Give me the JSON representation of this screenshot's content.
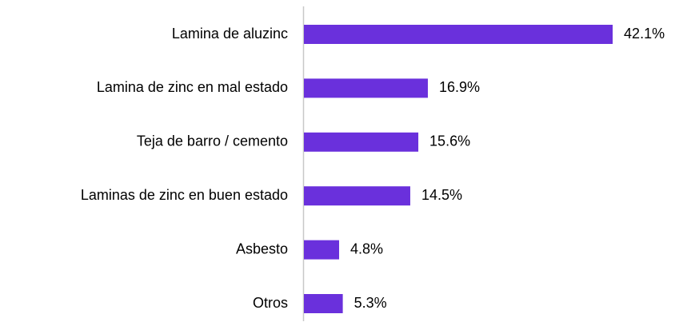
{
  "chart_data": {
    "type": "bar",
    "orientation": "horizontal",
    "categories": [
      "Lamina de aluzinc",
      "Lamina de zinc en mal estado",
      "Teja de barro / cemento",
      "Laminas de zinc en buen estado",
      "Asbesto",
      "Otros"
    ],
    "values": [
      42.1,
      16.9,
      15.6,
      14.5,
      4.8,
      5.3
    ],
    "value_labels": [
      "42.1%",
      "16.9%",
      "15.6%",
      "14.5%",
      "4.8%",
      "5.3%"
    ],
    "color": "#6a30dc"
  }
}
